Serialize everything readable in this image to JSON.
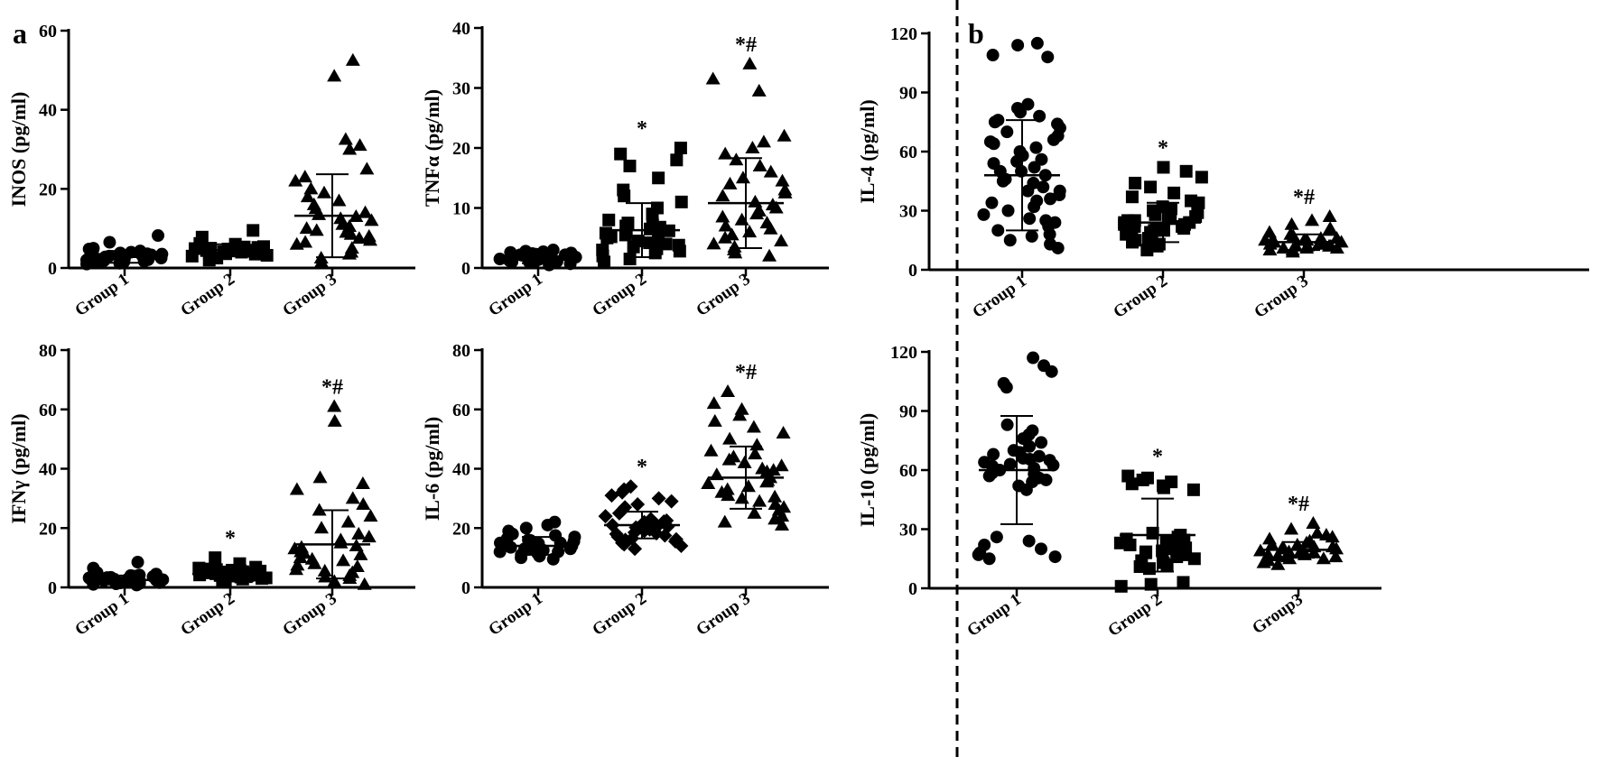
{
  "panel_labels": {
    "a": "a",
    "b": "b"
  },
  "colors": {
    "marker": "#000000",
    "background": "#ffffff"
  },
  "chart_data": [
    {
      "id": "inos",
      "type": "scatter",
      "ylabel": "INOS (pg/ml)",
      "ylim": [
        0,
        60
      ],
      "yticks": [
        "0",
        "20",
        "40",
        "60"
      ],
      "categories": [
        "Group 1",
        "Group 2",
        "Group 3"
      ],
      "markers": [
        "circle",
        "square",
        "triangle"
      ],
      "significance": [
        "",
        "",
        ""
      ],
      "groups": [
        {
          "mean": 2.8,
          "sd": 1.5,
          "values": [
            1.2,
            1.5,
            1.8,
            2.0,
            2.2,
            2.4,
            2.5,
            2.7,
            2.8,
            3.0,
            3.1,
            3.3,
            3.5,
            3.8,
            4.0,
            4.3,
            4.6,
            5.0,
            1.0,
            1.4,
            2.1,
            2.6,
            3.2,
            3.6,
            2.9,
            4.8,
            8.2,
            6.5,
            2.3,
            1.7
          ]
        },
        {
          "mean": 4.5,
          "sd": 1.5,
          "values": [
            2.0,
            2.5,
            3.0,
            3.2,
            3.5,
            3.8,
            4.0,
            4.1,
            4.3,
            4.5,
            4.6,
            4.8,
            5.0,
            5.2,
            5.4,
            5.6,
            5.8,
            6.0,
            6.2,
            3.6,
            4.4,
            4.9,
            5.3,
            4.2,
            3.9,
            9.5,
            7.8,
            5.1,
            4.7,
            4.0
          ]
        },
        {
          "mean": 13.2,
          "sd": 10.5,
          "values": [
            1.5,
            2.5,
            3.5,
            4.0,
            5.0,
            6.0,
            7.0,
            7.5,
            8.0,
            9.0,
            9.5,
            10.0,
            11.0,
            12.0,
            12.5,
            13.0,
            14.0,
            15.0,
            16.0,
            18.0,
            19.0,
            20.0,
            22.0,
            23.0,
            25.0,
            30.0,
            31.0,
            32.5,
            48.5,
            52.5,
            10.5,
            8.5,
            6.5,
            13.5,
            17.0
          ]
        }
      ]
    },
    {
      "id": "tnfa",
      "type": "scatter",
      "ylabel": "TNFα (pg/ml)",
      "ylim": [
        0,
        40
      ],
      "yticks": [
        "0",
        "10",
        "20",
        "30",
        "40"
      ],
      "categories": [
        "Group 1",
        "Group 2",
        "Group 3"
      ],
      "markers": [
        "circle",
        "square",
        "triangle"
      ],
      "significance": [
        "",
        "*",
        "*#"
      ],
      "groups": [
        {
          "mean": 1.5,
          "sd": 0.7,
          "values": [
            0.5,
            0.7,
            0.8,
            1.0,
            1.1,
            1.2,
            1.3,
            1.4,
            1.5,
            1.6,
            1.7,
            1.8,
            1.9,
            2.0,
            2.1,
            2.2,
            2.3,
            2.4,
            2.5,
            2.6,
            2.8,
            3.0,
            1.0,
            1.5,
            2.0,
            0.9,
            1.8,
            2.7,
            1.2,
            2.2
          ]
        },
        {
          "mean": 6.3,
          "sd": 4.5,
          "values": [
            1.0,
            1.5,
            2.0,
            2.5,
            3.0,
            3.2,
            3.5,
            4.0,
            4.2,
            4.5,
            5.0,
            5.2,
            5.5,
            6.0,
            6.2,
            6.5,
            7.0,
            7.2,
            7.5,
            8.0,
            9.0,
            10.0,
            11.0,
            12.0,
            13.0,
            15.0,
            17.0,
            18.0,
            19.0,
            20.0,
            2.8,
            3.8,
            6.8,
            5.8,
            4.8
          ]
        },
        {
          "mean": 10.8,
          "sd": 7.5,
          "values": [
            2.0,
            2.5,
            3.0,
            4.0,
            4.5,
            5.0,
            5.5,
            6.0,
            7.0,
            7.5,
            8.0,
            9.0,
            9.5,
            10.0,
            11.0,
            12.0,
            13.0,
            14.0,
            15.0,
            16.0,
            17.0,
            18.0,
            19.0,
            20.0,
            21.0,
            22.0,
            29.5,
            31.5,
            34.0,
            3.5,
            6.5,
            8.5,
            10.5,
            12.5,
            14.5
          ]
        }
      ]
    },
    {
      "id": "il4",
      "type": "scatter",
      "ylabel": "IL-4 (pg/ml)",
      "ylim": [
        0,
        120
      ],
      "yticks": [
        "0",
        "30",
        "60",
        "90",
        "120"
      ],
      "categories": [
        "Group 1",
        "Group 2",
        "Group 3"
      ],
      "markers": [
        "circle",
        "square",
        "triangle"
      ],
      "significance": [
        "",
        "*",
        "*#"
      ],
      "groups": [
        {
          "mean": 48,
          "sd": 28,
          "values": [
            11,
            13,
            15,
            17,
            18,
            20,
            22,
            24,
            26,
            28,
            30,
            32,
            34,
            36,
            38,
            40,
            42,
            44,
            46,
            48,
            50,
            52,
            54,
            56,
            58,
            60,
            62,
            64,
            66,
            68,
            70,
            72,
            74,
            76,
            78,
            80,
            82,
            84,
            108,
            109,
            114,
            115,
            25,
            35,
            45,
            55,
            65,
            75,
            50,
            40
          ]
        },
        {
          "mean": 24,
          "sd": 10,
          "values": [
            10,
            12,
            13,
            14,
            15,
            16,
            17,
            18,
            18,
            19,
            20,
            20,
            21,
            21,
            22,
            22,
            23,
            23,
            24,
            24,
            25,
            25,
            26,
            26,
            27,
            28,
            29,
            30,
            31,
            32,
            34,
            35,
            37,
            39,
            42,
            44,
            47,
            50,
            52,
            20
          ]
        },
        {
          "mean": 14,
          "sd": 4,
          "values": [
            9,
            10,
            10,
            11,
            11,
            12,
            12,
            12,
            13,
            13,
            13,
            14,
            14,
            14,
            15,
            15,
            16,
            16,
            17,
            18,
            19,
            20,
            21,
            23,
            25,
            27,
            11,
            13,
            15,
            12
          ]
        }
      ]
    },
    {
      "id": "ifng",
      "type": "scatter",
      "ylabel": "IFNγ (pg/ml)",
      "ylim": [
        0,
        80
      ],
      "yticks": [
        "0",
        "20",
        "40",
        "60",
        "80"
      ],
      "categories": [
        "Group 1",
        "Group 2",
        "Group 3"
      ],
      "markers": [
        "circle",
        "square",
        "triangle"
      ],
      "significance": [
        "",
        "*",
        "*#"
      ],
      "groups": [
        {
          "mean": 2.5,
          "sd": 1.5,
          "values": [
            0.8,
            1.0,
            1.3,
            1.5,
            1.8,
            2.0,
            2.2,
            2.4,
            2.6,
            2.8,
            3.0,
            3.2,
            3.4,
            3.6,
            3.8,
            4.0,
            4.2,
            4.5,
            5.0,
            1.2,
            1.9,
            2.7,
            3.3,
            2.1,
            8.5,
            6.5,
            2.9,
            1.6,
            3.7,
            2.3
          ]
        },
        {
          "mean": 4.5,
          "sd": 1.8,
          "values": [
            2.0,
            2.5,
            3.0,
            3.5,
            3.8,
            4.0,
            4.2,
            4.5,
            4.8,
            5.0,
            5.2,
            5.5,
            5.8,
            6.0,
            6.2,
            6.5,
            3.2,
            4.4,
            4.9,
            5.3,
            4.1,
            3.6,
            10.0,
            8.0,
            5.7,
            4.6,
            3.9,
            6.8,
            2.8,
            5.1
          ]
        },
        {
          "mean": 14.5,
          "sd": 11.5,
          "values": [
            1.0,
            2.0,
            3.0,
            4.0,
            5.0,
            6.0,
            7.0,
            8.0,
            9.0,
            10.0,
            11.0,
            12.0,
            13.0,
            14.0,
            15.0,
            16.0,
            17.0,
            18.0,
            20.0,
            22.0,
            24.0,
            26.0,
            28.0,
            30.0,
            33.0,
            35.0,
            37.0,
            56.0,
            61.0,
            5.5,
            9.5,
            13.5,
            7.5,
            11.5,
            3.5
          ]
        }
      ]
    },
    {
      "id": "il6",
      "type": "scatter",
      "ylabel": "IL-6 (pg/ml)",
      "ylim": [
        0,
        80
      ],
      "yticks": [
        "0",
        "20",
        "40",
        "60",
        "80"
      ],
      "categories": [
        "Group 1",
        "Group 2",
        "Group 3"
      ],
      "markers": [
        "circle",
        "diamond",
        "triangle"
      ],
      "significance": [
        "",
        "*",
        "*#"
      ],
      "groups": [
        {
          "mean": 14,
          "sd": 3,
          "values": [
            9.5,
            10,
            10.5,
            11,
            11.5,
            12,
            12,
            12.5,
            13,
            13,
            13.5,
            14,
            14,
            14.5,
            15,
            15,
            15.5,
            16,
            16.5,
            17,
            17.5,
            18,
            19,
            20,
            21,
            22,
            12.8,
            15.8,
            11.8,
            14.8
          ]
        },
        {
          "mean": 21,
          "sd": 4.5,
          "values": [
            13,
            14,
            14.5,
            15,
            15.5,
            16,
            16.5,
            17,
            17.5,
            18,
            18.5,
            19,
            19.5,
            20,
            20.5,
            21,
            21.5,
            22,
            22.5,
            23,
            24,
            25,
            26,
            27,
            28,
            29,
            30,
            31,
            32,
            33,
            34,
            18.2,
            20.2,
            22.2,
            16.2
          ]
        },
        {
          "mean": 37,
          "sd": 10.5,
          "values": [
            21,
            22,
            23,
            24,
            25,
            26,
            27,
            28,
            29,
            30,
            31,
            32,
            33,
            34,
            35,
            36,
            37,
            38,
            39,
            40,
            41,
            42,
            43,
            44,
            45,
            46,
            48,
            50,
            52,
            54,
            56,
            58,
            60,
            62,
            66,
            30.5,
            35.5,
            39.5
          ]
        }
      ]
    },
    {
      "id": "il10",
      "type": "scatter",
      "ylabel": "IL-10 (pg/ml)",
      "ylim": [
        0,
        120
      ],
      "yticks": [
        "0",
        "30",
        "60",
        "90",
        "120"
      ],
      "categories": [
        "Group 1",
        "Group 2",
        "Group3"
      ],
      "markers": [
        "circle",
        "square",
        "triangle"
      ],
      "significance": [
        "",
        "*",
        "*#"
      ],
      "groups": [
        {
          "mean": 60,
          "sd": 27.5,
          "values": [
            15,
            16,
            17,
            18,
            20,
            22,
            24,
            26,
            50,
            52,
            54,
            55,
            56,
            57,
            58,
            59,
            60,
            61,
            62,
            63,
            64,
            65,
            66,
            67,
            68,
            69,
            70,
            72,
            74,
            76,
            78,
            80,
            83,
            102,
            104,
            110,
            113,
            117,
            58.5,
            62.5,
            65.5
          ]
        },
        {
          "mean": 27,
          "sd": 18.5,
          "values": [
            1,
            2,
            3,
            10,
            11,
            12,
            13,
            14,
            15,
            16,
            17,
            18,
            19,
            20,
            21,
            22,
            23,
            24,
            25,
            26,
            27,
            28,
            50,
            51,
            52,
            53,
            54,
            55,
            56,
            57,
            20.5,
            24.5,
            18.5,
            22.5
          ]
        },
        {
          "mean": 19.5,
          "sd": 4,
          "values": [
            12,
            13,
            14,
            15,
            15,
            16,
            16,
            17,
            17,
            18,
            18,
            19,
            19,
            20,
            20,
            21,
            21,
            22,
            22,
            23,
            24,
            25,
            26,
            27,
            28,
            30,
            33,
            18.5,
            20.5,
            16.5
          ]
        }
      ]
    }
  ]
}
